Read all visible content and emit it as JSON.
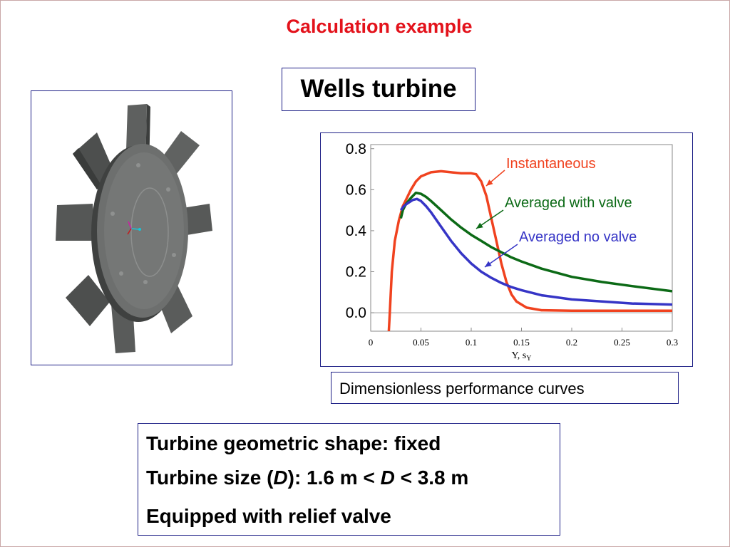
{
  "slide": {
    "title": "Calculation example",
    "box_title": "Wells turbine",
    "caption": "Dimensionless performance curves",
    "specs": {
      "line1": "Turbine geometric shape: fixed",
      "line2_prefix": "Turbine size (",
      "line2_var": "D",
      "line2_mid": "):   1.6 m < ",
      "line2_var2": "D",
      "line2_suffix": " < 3.8 m",
      "line3": "Equipped with relief valve"
    }
  },
  "image": {
    "description_icon": "turbine-rotor-icon",
    "colors": {
      "metal": "#6b6d6c",
      "shadow": "#3d3f3e"
    }
  },
  "chart_data": {
    "type": "line",
    "xlabel": "Y, s",
    "xlabel_sub": "Y",
    "ylabel": "",
    "xlim": [
      0,
      0.3
    ],
    "ylim": [
      -0.09,
      0.82
    ],
    "xticks": [
      0,
      0.05,
      0.1,
      0.15,
      0.2,
      0.25,
      0.3
    ],
    "xtick_labels": [
      "0",
      "0.05",
      "0.1",
      "0.15",
      "0.2",
      "0.25",
      "0.3"
    ],
    "yticks": [
      0.0,
      0.2,
      0.4,
      0.6,
      0.8
    ],
    "ytick_labels": [
      "0.0",
      "0.2",
      "0.4",
      "0.6",
      "0.8"
    ],
    "grid": false,
    "baseline_y": 0.0,
    "series": [
      {
        "name": "Instantaneous",
        "color": "#f0421f",
        "points": [
          [
            0.018,
            -0.09
          ],
          [
            0.019,
            0.0
          ],
          [
            0.021,
            0.2
          ],
          [
            0.024,
            0.35
          ],
          [
            0.028,
            0.45
          ],
          [
            0.032,
            0.52
          ],
          [
            0.036,
            0.56
          ],
          [
            0.04,
            0.6
          ],
          [
            0.045,
            0.64
          ],
          [
            0.05,
            0.665
          ],
          [
            0.06,
            0.685
          ],
          [
            0.07,
            0.69
          ],
          [
            0.08,
            0.685
          ],
          [
            0.09,
            0.68
          ],
          [
            0.1,
            0.68
          ],
          [
            0.105,
            0.675
          ],
          [
            0.11,
            0.64
          ],
          [
            0.115,
            0.57
          ],
          [
            0.12,
            0.46
          ],
          [
            0.125,
            0.35
          ],
          [
            0.13,
            0.24
          ],
          [
            0.135,
            0.15
          ],
          [
            0.14,
            0.09
          ],
          [
            0.145,
            0.055
          ],
          [
            0.155,
            0.025
          ],
          [
            0.17,
            0.012
          ],
          [
            0.2,
            0.01
          ],
          [
            0.25,
            0.01
          ],
          [
            0.3,
            0.01
          ]
        ]
      },
      {
        "name": "Averaged with valve",
        "color": "#0c6a16",
        "points": [
          [
            0.03,
            0.46
          ],
          [
            0.032,
            0.5
          ],
          [
            0.035,
            0.53
          ],
          [
            0.04,
            0.56
          ],
          [
            0.045,
            0.585
          ],
          [
            0.05,
            0.58
          ],
          [
            0.055,
            0.565
          ],
          [
            0.06,
            0.545
          ],
          [
            0.07,
            0.5
          ],
          [
            0.08,
            0.455
          ],
          [
            0.09,
            0.415
          ],
          [
            0.1,
            0.38
          ],
          [
            0.11,
            0.35
          ],
          [
            0.12,
            0.32
          ],
          [
            0.13,
            0.295
          ],
          [
            0.14,
            0.27
          ],
          [
            0.15,
            0.25
          ],
          [
            0.17,
            0.215
          ],
          [
            0.2,
            0.175
          ],
          [
            0.23,
            0.15
          ],
          [
            0.26,
            0.13
          ],
          [
            0.3,
            0.105
          ]
        ]
      },
      {
        "name": "Averaged no valve",
        "color": "#3635c6",
        "points": [
          [
            0.03,
            0.5
          ],
          [
            0.033,
            0.52
          ],
          [
            0.037,
            0.535
          ],
          [
            0.042,
            0.55
          ],
          [
            0.046,
            0.555
          ],
          [
            0.05,
            0.545
          ],
          [
            0.055,
            0.52
          ],
          [
            0.06,
            0.49
          ],
          [
            0.07,
            0.42
          ],
          [
            0.08,
            0.35
          ],
          [
            0.09,
            0.29
          ],
          [
            0.1,
            0.24
          ],
          [
            0.11,
            0.2
          ],
          [
            0.12,
            0.17
          ],
          [
            0.13,
            0.145
          ],
          [
            0.14,
            0.125
          ],
          [
            0.15,
            0.11
          ],
          [
            0.17,
            0.085
          ],
          [
            0.2,
            0.065
          ],
          [
            0.23,
            0.055
          ],
          [
            0.26,
            0.045
          ],
          [
            0.3,
            0.04
          ]
        ]
      }
    ]
  }
}
